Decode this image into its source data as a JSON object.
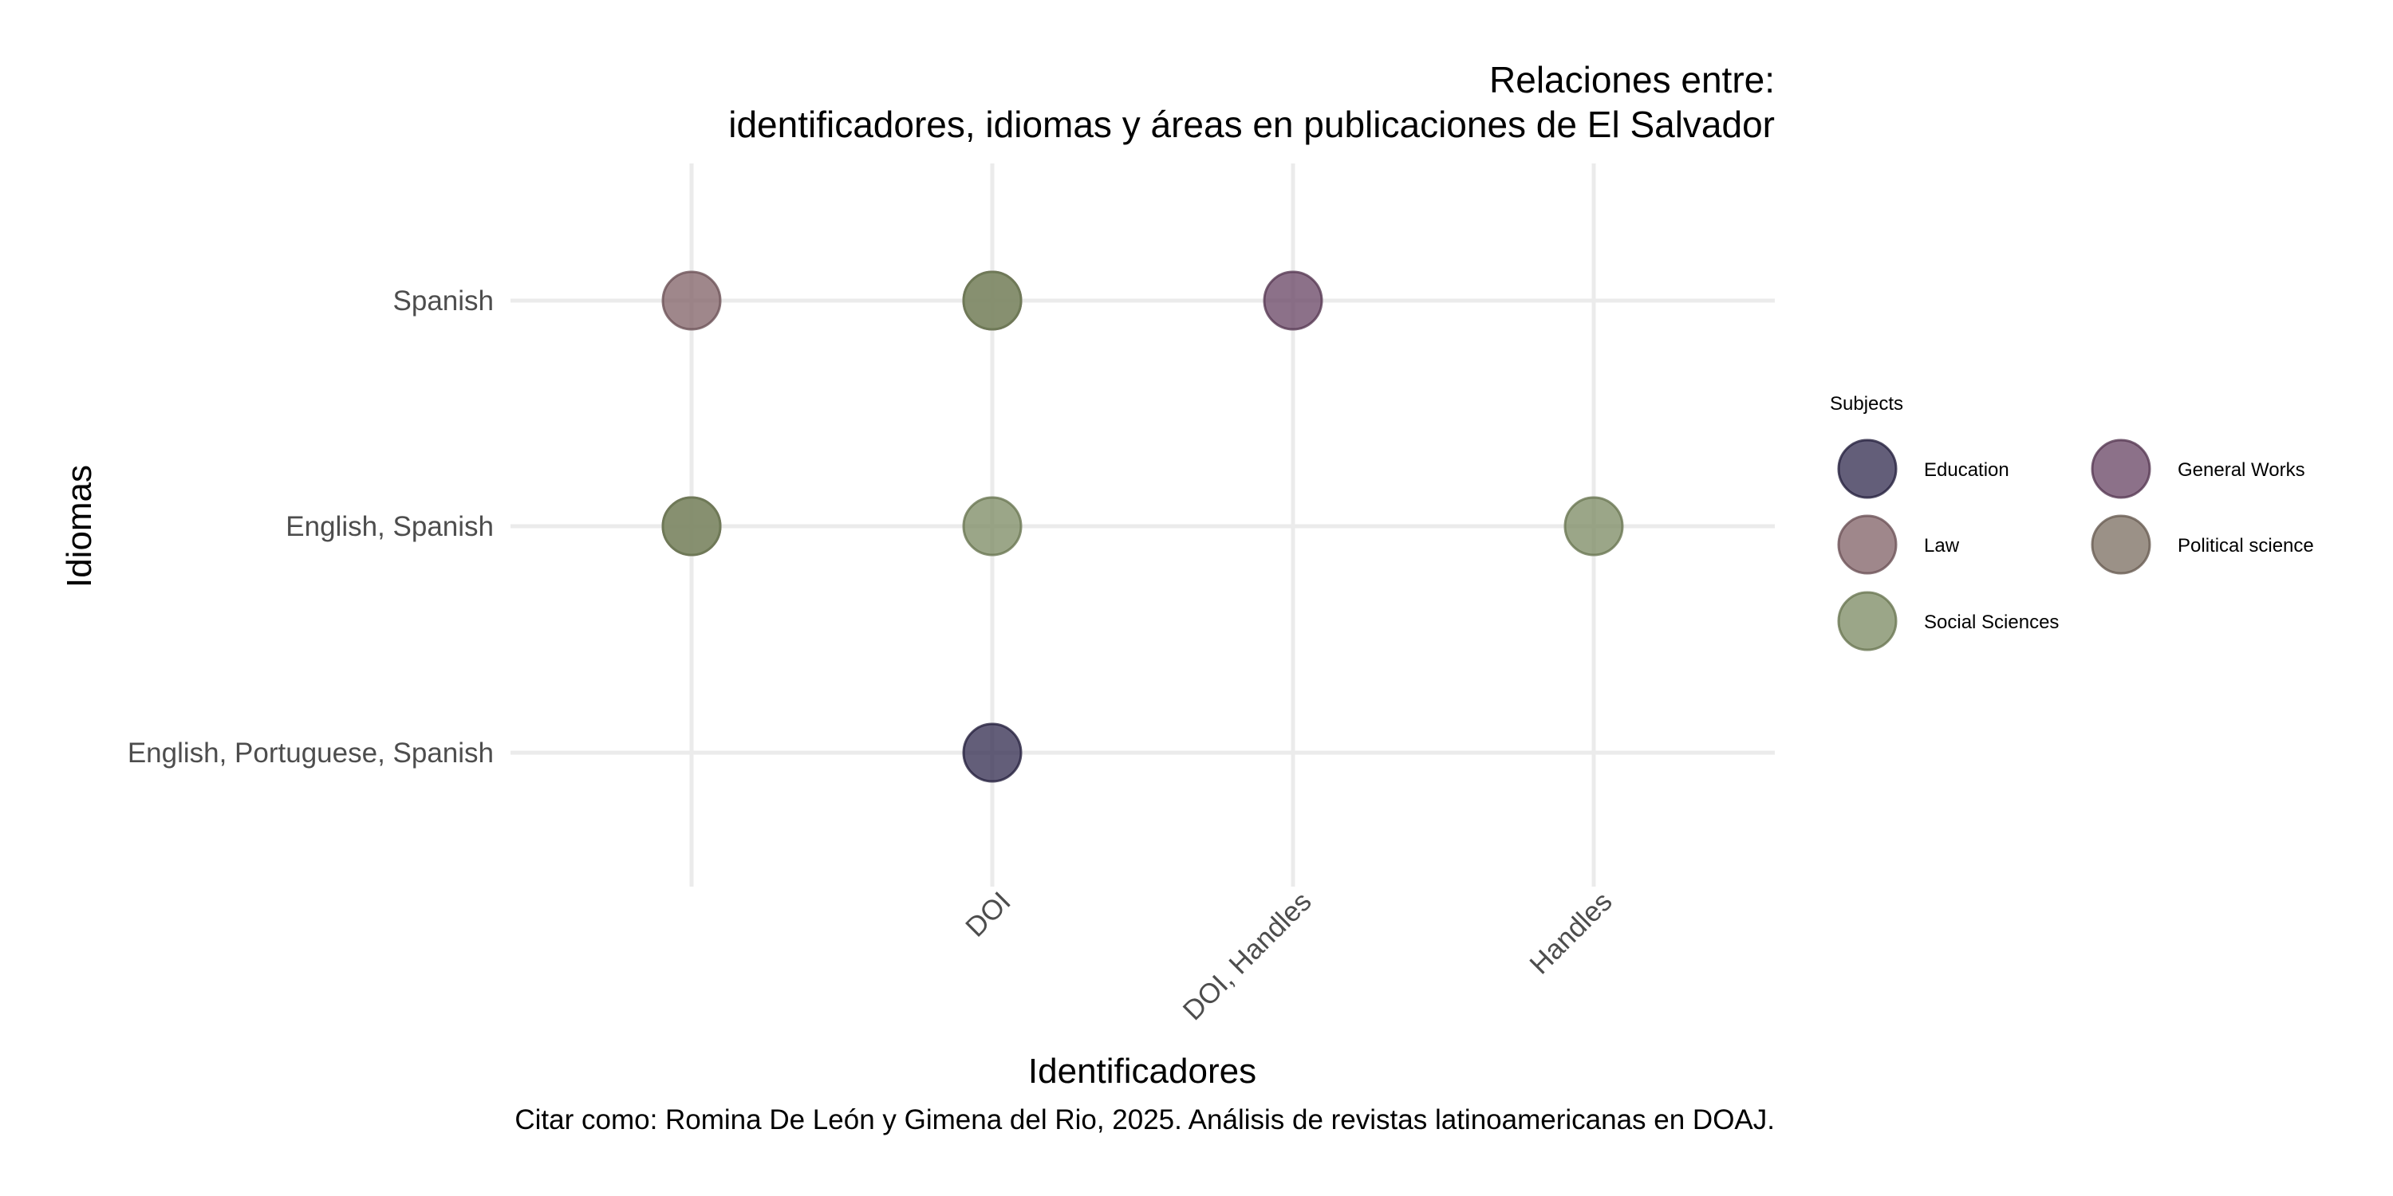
{
  "chart_data": {
    "type": "scatter",
    "title_line1": "Relaciones entre:",
    "title_line2": "identificadores, idiomas y áreas en publicaciones de El Salvador",
    "xlabel": "Identificadores",
    "ylabel": "Idiomas",
    "caption": "Citar como: Romina De León y Gimena del Rio, 2025. Análisis de revistas latinoamericanas en DOAJ.",
    "x_categories": [
      "",
      "DOI",
      "DOI, Handles",
      "Handles"
    ],
    "y_categories": [
      "English, Portuguese, Spanish",
      "English, Spanish",
      "Spanish"
    ],
    "legend_title": "Subjects",
    "legend_position": "right",
    "grid": true,
    "subjects": [
      {
        "name": "Education",
        "color": "#3c3658",
        "stroke": "#26213f"
      },
      {
        "name": "General Works",
        "color": "#6f4d6b",
        "stroke": "#573a54"
      },
      {
        "name": "Law",
        "color": "#87696e",
        "stroke": "#6d5257"
      },
      {
        "name": "Political science",
        "color": "#827569",
        "stroke": "#695d52"
      },
      {
        "name": "Social Sciences",
        "color": "#82906a",
        "stroke": "#6a7753"
      }
    ],
    "points": [
      {
        "x": "",
        "y": "Spanish",
        "subject": "Law"
      },
      {
        "x": "DOI",
        "y": "Spanish",
        "subject": "Political science"
      },
      {
        "x": "DOI",
        "y": "Spanish",
        "subject": "Social Sciences"
      },
      {
        "x": "DOI, Handles",
        "y": "Spanish",
        "subject": "General Works"
      },
      {
        "x": "",
        "y": "English, Spanish",
        "subject": "Political science"
      },
      {
        "x": "",
        "y": "English, Spanish",
        "subject": "Social Sciences"
      },
      {
        "x": "DOI",
        "y": "English, Spanish",
        "subject": "Social Sciences"
      },
      {
        "x": "Handles",
        "y": "English, Spanish",
        "subject": "Social Sciences"
      },
      {
        "x": "DOI",
        "y": "English, Portuguese, Spanish",
        "subject": "Education"
      }
    ]
  }
}
